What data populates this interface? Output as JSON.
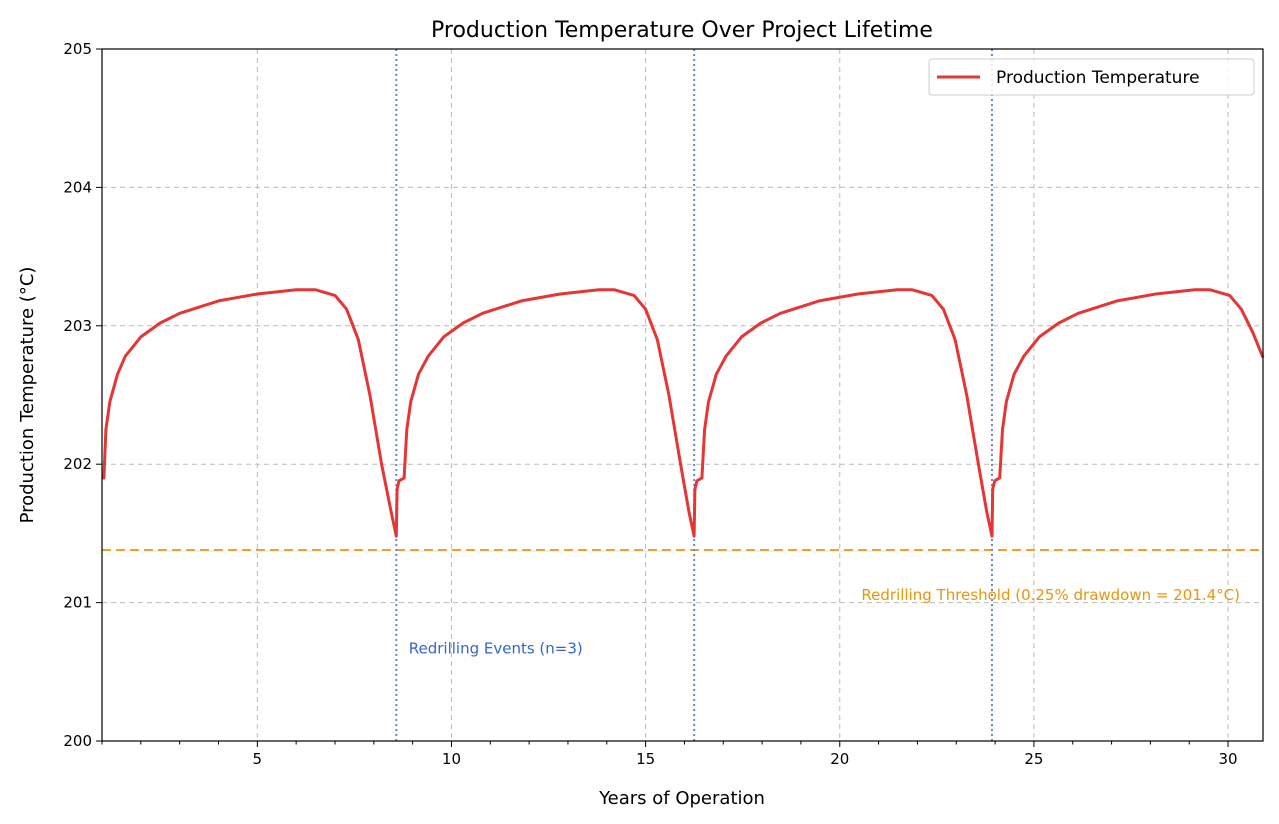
{
  "chart_data": {
    "type": "line",
    "title": "Production Temperature Over Project Lifetime",
    "xlabel": "Years of Operation",
    "ylabel": "Production Temperature (°C)",
    "xlim": [
      1,
      30.9
    ],
    "ylim": [
      200,
      205
    ],
    "xticks": [
      5,
      10,
      15,
      20,
      25,
      30
    ],
    "yticks": [
      200,
      201,
      202,
      203,
      204,
      205
    ],
    "grid": true,
    "legend": {
      "placement": "top-right",
      "entries": [
        "Production Temperature"
      ]
    },
    "series": [
      {
        "name": "Production Temperature",
        "color": "#e53535",
        "x": [
          1.0,
          1.05,
          1.1,
          1.2,
          1.4,
          1.6,
          2.0,
          2.5,
          3.0,
          4.0,
          5.0,
          6.0,
          6.5,
          7.0,
          7.3,
          7.6,
          7.9,
          8.2,
          8.45,
          8.58,
          8.6,
          8.65,
          8.78,
          8.85,
          8.95,
          9.15,
          9.4,
          9.8,
          10.3,
          10.8,
          11.8,
          12.8,
          13.8,
          14.2,
          14.7,
          15.0,
          15.3,
          15.6,
          15.9,
          16.12,
          16.25,
          16.27,
          16.32,
          16.45,
          16.52,
          16.62,
          16.82,
          17.07,
          17.47,
          17.97,
          18.47,
          19.47,
          20.47,
          21.47,
          21.87,
          22.37,
          22.67,
          22.97,
          23.27,
          23.57,
          23.79,
          23.92,
          23.94,
          23.99,
          24.12,
          24.19,
          24.29,
          24.49,
          24.74,
          25.14,
          25.64,
          26.14,
          27.14,
          28.14,
          29.14,
          29.54,
          30.04,
          30.34,
          30.64,
          30.9
        ],
        "y": [
          201.9,
          201.9,
          202.25,
          202.45,
          202.65,
          202.78,
          202.92,
          203.02,
          203.09,
          203.18,
          203.23,
          203.26,
          203.26,
          203.22,
          203.12,
          202.9,
          202.5,
          202.0,
          201.65,
          201.48,
          201.82,
          201.88,
          201.9,
          202.25,
          202.45,
          202.65,
          202.78,
          202.92,
          203.02,
          203.09,
          203.18,
          203.23,
          203.26,
          203.26,
          203.22,
          203.12,
          202.9,
          202.5,
          202.0,
          201.65,
          201.48,
          201.82,
          201.88,
          201.9,
          202.25,
          202.45,
          202.65,
          202.78,
          202.92,
          203.02,
          203.09,
          203.18,
          203.23,
          203.26,
          203.26,
          203.22,
          203.12,
          202.9,
          202.5,
          202.0,
          201.65,
          201.48,
          201.82,
          201.88,
          201.9,
          202.25,
          202.45,
          202.65,
          202.78,
          202.92,
          203.02,
          203.09,
          203.18,
          203.23,
          203.26,
          203.26,
          203.22,
          203.12,
          202.95,
          202.77
        ]
      }
    ],
    "threshold": {
      "y": 201.38,
      "color": "#f0a030",
      "label": "Redrilling Threshold (0.25% drawdown = 201.4°C)",
      "label_color": "#e8960a"
    },
    "events": {
      "x": [
        8.58,
        16.25,
        23.92
      ],
      "color": "#6a86c8",
      "label": "Redrilling Events (n=3)",
      "label_color": "#3366cc",
      "label_x": 8.9,
      "label_y": 200.67
    }
  }
}
